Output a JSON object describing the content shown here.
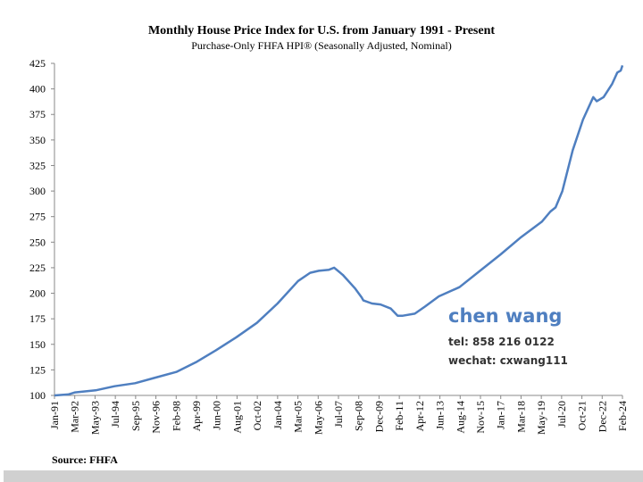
{
  "chart_data": {
    "type": "line",
    "title": "Monthly House Price Index for U.S. from January 1991 - Present",
    "subtitle": "Purchase-Only FHFA HPI® (Seasonally Adjusted, Nominal)",
    "xlabel": "",
    "ylabel": "",
    "ylim": [
      100,
      425
    ],
    "yticks": [
      100,
      125,
      150,
      175,
      200,
      225,
      250,
      275,
      300,
      325,
      350,
      375,
      400,
      425
    ],
    "xticks": [
      "Jan-91",
      "Mar-92",
      "May-93",
      "Jul-94",
      "Sep-95",
      "Nov-96",
      "Feb-98",
      "Apr-99",
      "Jun-00",
      "Aug-01",
      "Oct-02",
      "Jan-04",
      "Mar-05",
      "May-06",
      "Jul-07",
      "Sep-08",
      "Dec-09",
      "Feb-11",
      "Apr-12",
      "Jun-13",
      "Aug-14",
      "Nov-15",
      "Jan-17",
      "Mar-18",
      "May-19",
      "Jul-20",
      "Oct-21",
      "Dec-22",
      "Feb-24"
    ],
    "grid": false,
    "series": [
      {
        "name": "Purchase-Only FHFA HPI",
        "color": "#4f7fc0",
        "x": [
          1991.0,
          1991.8,
          1992.2,
          1993.4,
          1994.5,
          1995.7,
          1996.8,
          1998.1,
          1999.3,
          2000.4,
          2001.6,
          2002.8,
          2004.0,
          2005.2,
          2005.9,
          2006.4,
          2007.0,
          2007.3,
          2007.8,
          2008.5,
          2008.9,
          2009.0,
          2009.5,
          2010.0,
          2010.6,
          2011.0,
          2011.3,
          2012.0,
          2012.6,
          2013.4,
          2014.6,
          2015.8,
          2017.0,
          2018.2,
          2019.4,
          2019.9,
          2020.2,
          2020.6,
          2021.2,
          2021.8,
          2022.4,
          2022.6,
          2023.0,
          2023.5,
          2023.8,
          2024.0,
          2024.1
        ],
        "y": [
          100,
          101,
          103,
          105,
          109,
          112,
          117,
          123,
          133,
          144,
          157,
          171,
          190,
          212,
          220,
          222,
          223,
          225,
          218,
          205,
          196,
          193,
          190,
          189,
          185,
          178,
          178,
          180,
          187,
          197,
          206,
          222,
          238,
          255,
          270,
          280,
          284,
          300,
          340,
          370,
          392,
          388,
          392,
          405,
          416,
          418,
          423
        ]
      }
    ]
  },
  "watermark": {
    "name": "chen wang",
    "tel": "tel: 858 216 0122",
    "wechat": "wechat: cxwang111"
  },
  "source": "Source: FHFA"
}
